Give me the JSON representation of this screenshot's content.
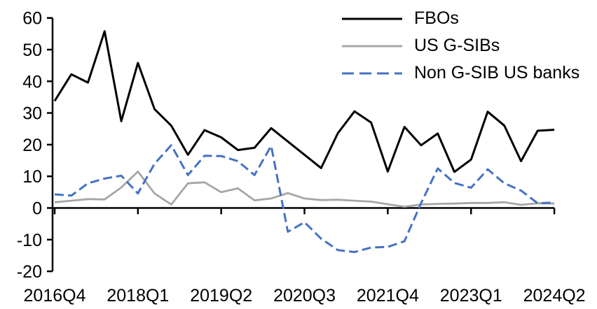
{
  "chart_data": {
    "type": "line",
    "title": "",
    "xlabel": "",
    "ylabel": "",
    "ylim": [
      -20,
      60
    ],
    "y_ticks": [
      60,
      50,
      40,
      30,
      20,
      10,
      0,
      -10,
      -20
    ],
    "grid": false,
    "legend_position": "top-right",
    "x_tick_labels": [
      "2016Q4",
      "2018Q1",
      "2019Q2",
      "2020Q3",
      "2021Q4",
      "2023Q1",
      "2024Q2"
    ],
    "x_tick_positions": [
      0,
      5,
      10,
      15,
      20,
      25,
      30
    ],
    "categories": [
      "2016Q4",
      "2017Q1",
      "2017Q2",
      "2017Q3",
      "2017Q4",
      "2018Q1",
      "2018Q2",
      "2018Q3",
      "2018Q4",
      "2019Q1",
      "2019Q2",
      "2019Q3",
      "2019Q4",
      "2020Q1",
      "2020Q2",
      "2020Q3",
      "2020Q4",
      "2021Q1",
      "2021Q2",
      "2021Q3",
      "2021Q4",
      "2022Q1",
      "2022Q2",
      "2022Q3",
      "2022Q4",
      "2023Q1",
      "2023Q2",
      "2023Q3",
      "2023Q4",
      "2024Q1",
      "2024Q2"
    ],
    "series": [
      {
        "name": "FBOs",
        "color": "#000000",
        "dash": "solid",
        "values": [
          33.8,
          42.2,
          39.6,
          55.8,
          27.4,
          45.8,
          31.2,
          26.0,
          16.8,
          24.6,
          22.3,
          18.3,
          19.0,
          25.2,
          21.0,
          16.8,
          12.6,
          23.6,
          30.5,
          27.0,
          11.5,
          25.6,
          19.8,
          23.5,
          11.4,
          15.3,
          30.4,
          26.0,
          14.8,
          24.4,
          24.7
        ]
      },
      {
        "name": "US G-SIBs",
        "color": "#A6A6A6",
        "dash": "solid",
        "values": [
          1.8,
          2.3,
          2.8,
          2.7,
          6.5,
          11.5,
          4.6,
          1.1,
          7.8,
          8.1,
          5.0,
          6.2,
          2.4,
          3.0,
          4.7,
          3.0,
          2.5,
          2.6,
          2.3,
          2.0,
          1.2,
          0.4,
          1.1,
          1.3,
          1.4,
          1.6,
          1.6,
          1.8,
          1.0,
          1.5,
          1.4
        ]
      },
      {
        "name": "Non G-SIB US banks",
        "color": "#4472C4",
        "dash": "dashed",
        "values": [
          4.3,
          3.9,
          7.8,
          9.3,
          10.2,
          4.6,
          14.0,
          19.8,
          10.4,
          16.5,
          16.4,
          14.8,
          10.4,
          19.6,
          -7.5,
          -4.5,
          -9.7,
          -13.3,
          -13.9,
          -12.5,
          -12.3,
          -10.5,
          1.5,
          12.5,
          7.9,
          6.4,
          12.2,
          7.8,
          5.5,
          1.5,
          1.7
        ]
      }
    ]
  }
}
